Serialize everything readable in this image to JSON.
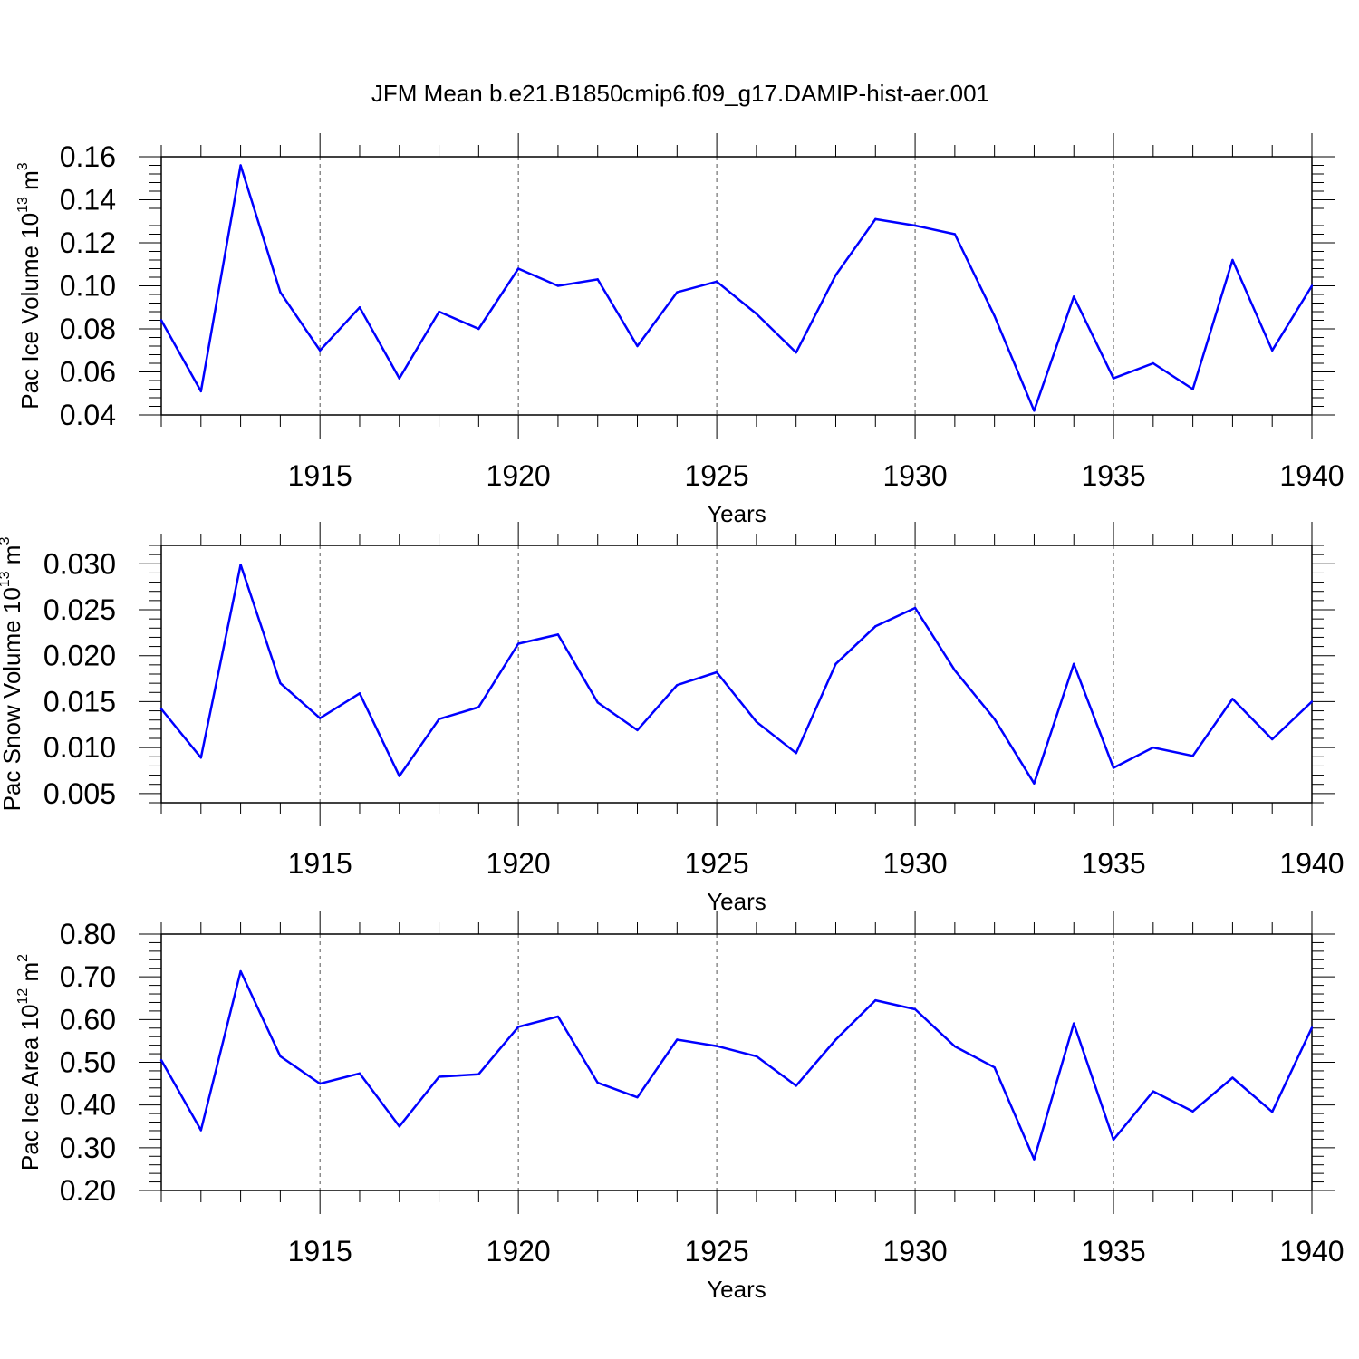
{
  "chart_data": {
    "type": "line",
    "title": "JFM Mean b.e21.B1850cmip6.f09_g17.DAMIP-hist-aer.001",
    "line_color": "#0000ff",
    "grid": "dashed vertical lines at labeled x ticks",
    "xlim": [
      1911,
      1940
    ],
    "x": [
      1911,
      1912,
      1913,
      1914,
      1915,
      1916,
      1917,
      1918,
      1919,
      1920,
      1921,
      1922,
      1923,
      1924,
      1925,
      1926,
      1927,
      1928,
      1929,
      1930,
      1931,
      1932,
      1933,
      1934,
      1935,
      1936,
      1937,
      1938,
      1939,
      1940
    ],
    "panels": [
      {
        "ylabel": "Pac Ice Volume 10",
        "ylabel_exp": "13",
        "ylabel_unit": "m",
        "ylabel_unit_exp": "3",
        "xlabel": "Years",
        "ylim": [
          0.04,
          0.16
        ],
        "yticks": [
          "0.04",
          "0.06",
          "0.08",
          "0.10",
          "0.12",
          "0.14",
          "0.16"
        ],
        "xticks": [
          "1915",
          "1920",
          "1925",
          "1930",
          "1935",
          "1940"
        ],
        "values": [
          0.084,
          0.051,
          0.156,
          0.097,
          0.07,
          0.09,
          0.057,
          0.088,
          0.08,
          0.108,
          0.1,
          0.103,
          0.072,
          0.097,
          0.102,
          0.087,
          0.069,
          0.105,
          0.131,
          0.128,
          0.124,
          0.086,
          0.042,
          0.095,
          0.057,
          0.064,
          0.052,
          0.112,
          0.07,
          0.1
        ]
      },
      {
        "ylabel": "Pac Snow Volume 10",
        "ylabel_exp": "13",
        "ylabel_unit": "m",
        "ylabel_unit_exp": "3",
        "xlabel": "Years",
        "ylim": [
          0.004,
          0.032
        ],
        "yticks": [
          "0.005",
          "0.010",
          "0.015",
          "0.020",
          "0.025",
          "0.030"
        ],
        "xticks": [
          "1915",
          "1920",
          "1925",
          "1930",
          "1935",
          "1940"
        ],
        "values": [
          0.0142,
          0.0089,
          0.0299,
          0.017,
          0.0132,
          0.0159,
          0.0069,
          0.0131,
          0.0144,
          0.0213,
          0.0223,
          0.0149,
          0.0119,
          0.0168,
          0.0182,
          0.0128,
          0.0094,
          0.0191,
          0.0232,
          0.0252,
          0.0184,
          0.0131,
          0.0061,
          0.0191,
          0.0078,
          0.01,
          0.0091,
          0.0153,
          0.0109,
          0.015
        ]
      },
      {
        "ylabel": "Pac Ice Area 10",
        "ylabel_exp": "12",
        "ylabel_unit": "m",
        "ylabel_unit_exp": "2",
        "xlabel": "Years",
        "ylim": [
          0.2,
          0.8
        ],
        "yticks": [
          "0.20",
          "0.30",
          "0.40",
          "0.50",
          "0.60",
          "0.70",
          "0.80"
        ],
        "xticks": [
          "1915",
          "1920",
          "1925",
          "1930",
          "1935",
          "1940"
        ],
        "values": [
          0.505,
          0.341,
          0.713,
          0.514,
          0.45,
          0.474,
          0.35,
          0.466,
          0.472,
          0.583,
          0.607,
          0.452,
          0.418,
          0.553,
          0.538,
          0.514,
          0.445,
          0.553,
          0.645,
          0.624,
          0.537,
          0.488,
          0.273,
          0.591,
          0.319,
          0.432,
          0.385,
          0.464,
          0.384,
          0.581
        ]
      }
    ]
  }
}
